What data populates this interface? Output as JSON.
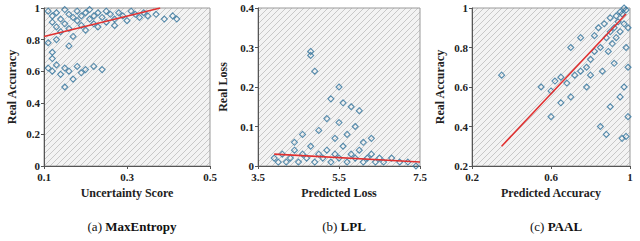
{
  "chart_data": [
    {
      "type": "scatter",
      "title": "(a) MaxEntropy",
      "x_label": "Uncertainty Score",
      "y_label": "Real Accuracy",
      "xlim": [
        0.1,
        0.5
      ],
      "xticks": [
        0.1,
        0.3,
        0.5
      ],
      "ylim": [
        0,
        1
      ],
      "yticks": [
        0,
        0.2,
        0.4,
        0.6,
        0.8,
        1
      ],
      "grid": false,
      "series": [
        {
          "type": "scatter",
          "color": "#31739c",
          "marker": "diamond",
          "x": [
            0.11,
            0.12,
            0.12,
            0.13,
            0.13,
            0.14,
            0.14,
            0.15,
            0.15,
            0.16,
            0.16,
            0.17,
            0.17,
            0.18,
            0.18,
            0.19,
            0.19,
            0.2,
            0.2,
            0.21,
            0.21,
            0.22,
            0.22,
            0.23,
            0.23,
            0.24,
            0.25,
            0.25,
            0.26,
            0.27,
            0.27,
            0.28,
            0.29,
            0.3,
            0.31,
            0.32,
            0.33,
            0.34,
            0.35,
            0.37,
            0.39,
            0.41,
            0.42,
            0.11,
            0.13,
            0.16,
            0.12,
            0.11,
            0.12,
            0.13,
            0.14,
            0.15,
            0.16,
            0.18,
            0.19,
            0.2,
            0.22,
            0.24,
            0.15,
            0.17,
            0.12
          ],
          "values": [
            0.98,
            0.95,
            0.91,
            0.88,
            0.97,
            0.93,
            0.85,
            0.99,
            0.9,
            0.96,
            0.87,
            0.94,
            0.82,
            0.98,
            0.92,
            0.89,
            0.95,
            0.97,
            0.86,
            0.93,
            0.99,
            0.9,
            0.95,
            0.88,
            0.97,
            0.94,
            0.91,
            0.98,
            0.96,
            0.93,
            0.89,
            0.97,
            0.95,
            0.92,
            0.98,
            0.96,
            0.94,
            0.97,
            0.95,
            0.96,
            0.93,
            0.95,
            0.93,
            0.78,
            0.8,
            0.76,
            0.72,
            0.62,
            0.6,
            0.64,
            0.58,
            0.62,
            0.6,
            0.63,
            0.59,
            0.61,
            0.63,
            0.61,
            0.5,
            0.55,
            0.68
          ]
        },
        {
          "type": "line",
          "color": "#e03030",
          "line_style": "solid",
          "x": [
            0.1,
            0.38
          ],
          "values": [
            0.82,
            1.0
          ]
        }
      ]
    },
    {
      "type": "scatter",
      "title": "(b) LPL",
      "x_label": "Predicted Loss",
      "y_label": "Real Loss",
      "xlim": [
        3.5,
        7.5
      ],
      "xticks": [
        3.5,
        5.5,
        7.5
      ],
      "ylim": [
        0,
        0.4
      ],
      "yticks": [
        0,
        0.1,
        0.2,
        0.3,
        0.4
      ],
      "grid": false,
      "series": [
        {
          "type": "scatter",
          "color": "#31739c",
          "marker": "diamond",
          "x": [
            3.9,
            4.0,
            4.1,
            4.2,
            4.3,
            4.4,
            4.5,
            4.6,
            4.7,
            4.8,
            4.9,
            5.0,
            5.1,
            5.2,
            5.3,
            5.4,
            5.5,
            5.6,
            5.7,
            5.8,
            5.9,
            6.0,
            6.1,
            6.2,
            6.3,
            6.4,
            6.5,
            6.6,
            6.8,
            7.0,
            7.2,
            7.4,
            4.8,
            4.8,
            4.9,
            5.3,
            5.5,
            5.6,
            5.8,
            6.0,
            5.2,
            5.5,
            5.9,
            4.6,
            5.0,
            5.4,
            5.7,
            6.1,
            6.3,
            4.4
          ],
          "values": [
            0.02,
            0.01,
            0.03,
            0.01,
            0.02,
            0.04,
            0.01,
            0.03,
            0.02,
            0.05,
            0.01,
            0.03,
            0.02,
            0.04,
            0.01,
            0.03,
            0.02,
            0.05,
            0.01,
            0.03,
            0.02,
            0.04,
            0.01,
            0.02,
            0.03,
            0.01,
            0.02,
            0.01,
            0.02,
            0.01,
            0.01,
            0.0,
            0.29,
            0.28,
            0.24,
            0.17,
            0.2,
            0.16,
            0.15,
            0.14,
            0.12,
            0.11,
            0.1,
            0.08,
            0.09,
            0.07,
            0.08,
            0.06,
            0.07,
            0.06
          ]
        },
        {
          "type": "line",
          "color": "#e03030",
          "line_style": "solid",
          "x": [
            3.9,
            7.5
          ],
          "values": [
            0.03,
            0.01
          ]
        }
      ]
    },
    {
      "type": "scatter",
      "title": "(c) PAAL",
      "x_label": "Predicted Accuracy",
      "y_label": "Real Accuracy",
      "xlim": [
        0.2,
        1
      ],
      "xticks": [
        0.2,
        0.6,
        1
      ],
      "ylim": [
        0.2,
        1
      ],
      "yticks": [
        0.2,
        0.4,
        0.6,
        0.8,
        1
      ],
      "grid": false,
      "series": [
        {
          "type": "scatter",
          "color": "#31739c",
          "marker": "diamond",
          "x": [
            0.35,
            0.55,
            0.6,
            0.62,
            0.65,
            0.68,
            0.7,
            0.72,
            0.75,
            0.78,
            0.8,
            0.82,
            0.85,
            0.88,
            0.9,
            0.92,
            0.94,
            0.96,
            0.98,
            0.97,
            0.95,
            0.93,
            0.91,
            0.89,
            0.98,
            0.96,
            0.88,
            0.85,
            0.99,
            0.9,
            0.95,
            0.97,
            0.99,
            0.92,
            0.86,
            0.8,
            0.98,
            0.99,
            0.97,
            0.95,
            0.93,
            0.9,
            0.87,
            0.84,
            0.82,
            0.6,
            0.65,
            0.7,
            0.75,
            0.78
          ],
          "values": [
            0.66,
            0.6,
            0.58,
            0.63,
            0.65,
            0.62,
            0.55,
            0.66,
            0.68,
            0.7,
            0.74,
            0.78,
            0.8,
            0.85,
            0.88,
            0.9,
            0.93,
            0.97,
            0.99,
            0.92,
            0.88,
            0.85,
            0.82,
            0.78,
            0.35,
            0.34,
            0.36,
            0.4,
            0.45,
            0.5,
            0.55,
            0.6,
            0.7,
            0.72,
            0.68,
            0.66,
            0.8,
            0.9,
            1.0,
            0.98,
            0.96,
            0.95,
            0.92,
            0.9,
            0.86,
            0.45,
            0.52,
            0.8,
            0.85,
            0.6
          ]
        },
        {
          "type": "line",
          "color": "#e03030",
          "line_style": "solid",
          "x": [
            0.35,
            0.98
          ],
          "values": [
            0.3,
            0.97
          ]
        }
      ]
    }
  ]
}
